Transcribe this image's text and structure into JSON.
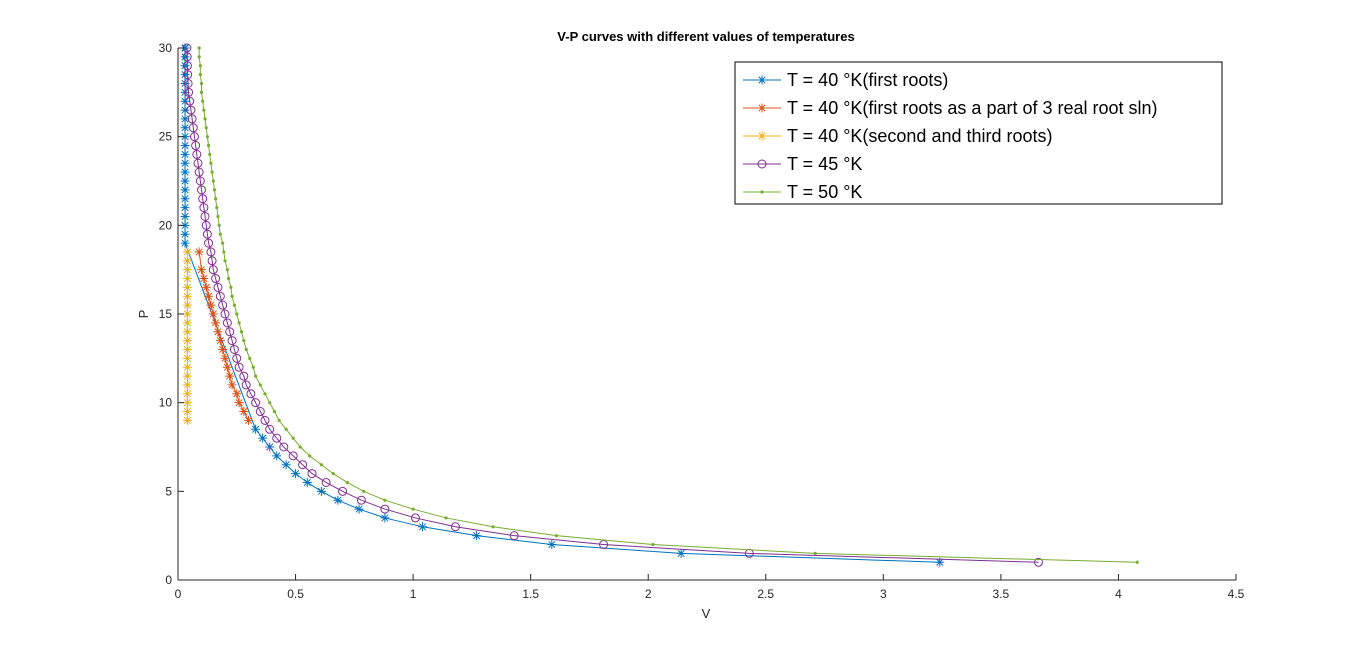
{
  "chart_data": {
    "type": "line",
    "title": "V-P curves with different values of temperatures",
    "xlabel": "V",
    "ylabel": "P",
    "xlim": [
      0,
      4.5
    ],
    "ylim": [
      0,
      30
    ],
    "xticks": [
      0,
      0.5,
      1,
      1.5,
      2,
      2.5,
      3,
      3.5,
      4,
      4.5
    ],
    "xtick_labels": [
      "0",
      "0.5",
      "1",
      "1.5",
      "2",
      "2.5",
      "3",
      "3.5",
      "4",
      "4.5"
    ],
    "yticks": [
      0,
      5,
      10,
      15,
      20,
      25,
      30
    ],
    "ytick_labels": [
      "0",
      "5",
      "10",
      "15",
      "20",
      "25",
      "30"
    ],
    "grid": false,
    "legend_position": "top-right",
    "series": [
      {
        "name": "T = 40 °K(first roots)",
        "color": "#0072BD",
        "marker": "asterisk",
        "x": [
          3.24,
          2.14,
          1.59,
          1.27,
          1.04,
          0.88,
          0.77,
          0.68,
          0.61,
          0.55,
          0.5,
          0.46,
          0.42,
          0.39,
          0.36,
          0.33,
          0.03,
          0.03,
          0.03,
          0.03,
          0.03,
          0.03,
          0.03,
          0.03,
          0.03,
          0.03,
          0.03,
          0.03,
          0.03,
          0.03,
          0.03,
          0.03,
          0.03,
          0.03,
          0.03,
          0.03,
          0.03,
          0.03,
          0.03,
          0.03,
          0.03,
          0.03,
          0.03
        ],
        "y": [
          1,
          1.5,
          2,
          2.5,
          3,
          3.5,
          4,
          4.5,
          5,
          5.5,
          6,
          6.5,
          7,
          7.5,
          8,
          8.5,
          19,
          19.5,
          20,
          20.5,
          21,
          21.5,
          22,
          22.5,
          23,
          23.5,
          24,
          24.5,
          25,
          25.5,
          26,
          26.5,
          27,
          27.5,
          28,
          28.5,
          29,
          29.5,
          30,
          30,
          30,
          30,
          30
        ]
      },
      {
        "name": "T = 40 °K(first roots as a part of 3 real root sln)",
        "color": "#D95319",
        "marker": "asterisk",
        "x": [
          0.3,
          0.28,
          0.26,
          0.25,
          0.23,
          0.22,
          0.21,
          0.2,
          0.19,
          0.18,
          0.17,
          0.16,
          0.15,
          0.14,
          0.13,
          0.12,
          0.11,
          0.1,
          0.09
        ],
        "y": [
          9,
          9.5,
          10,
          10.5,
          11,
          11.5,
          12,
          12.5,
          13,
          13.5,
          14,
          14.5,
          15,
          15.5,
          16,
          16.5,
          17,
          17.5,
          18.5
        ]
      },
      {
        "name": "T = 40 °K(second and third roots)",
        "color": "#EDB120",
        "marker": "asterisk",
        "x": [
          0.04,
          0.04,
          0.04,
          0.04,
          0.04,
          0.04,
          0.04,
          0.04,
          0.04,
          0.04,
          0.04,
          0.04,
          0.04,
          0.04,
          0.04,
          0.04,
          0.04,
          0.04,
          0.04,
          0.04
        ],
        "y": [
          9,
          9.5,
          10,
          10.5,
          11,
          11.5,
          12,
          12.5,
          13,
          13.5,
          14,
          14.5,
          15,
          15.5,
          16,
          16.5,
          17,
          17.5,
          18,
          18.5
        ]
      },
      {
        "name": "T = 45 °K",
        "color": "#7E2F8E",
        "marker": "circle",
        "x": [
          3.66,
          2.43,
          1.81,
          1.43,
          1.18,
          1.01,
          0.88,
          0.78,
          0.7,
          0.63,
          0.57,
          0.53,
          0.49,
          0.45,
          0.42,
          0.39,
          0.37,
          0.35,
          0.33,
          0.31,
          0.29,
          0.28,
          0.26,
          0.25,
          0.24,
          0.23,
          0.22,
          0.21,
          0.2,
          0.19,
          0.18,
          0.17,
          0.16,
          0.15,
          0.145,
          0.14,
          0.13,
          0.125,
          0.12,
          0.115,
          0.11,
          0.105,
          0.1,
          0.095,
          0.09,
          0.085,
          0.08,
          0.075,
          0.07,
          0.065,
          0.06,
          0.055,
          0.05,
          0.045,
          0.043,
          0.041,
          0.04,
          0.039,
          0.038
        ],
        "y": [
          1,
          1.5,
          2,
          2.5,
          3,
          3.5,
          4,
          4.5,
          5,
          5.5,
          6,
          6.5,
          7,
          7.5,
          8,
          8.5,
          9,
          9.5,
          10,
          10.5,
          11,
          11.5,
          12,
          12.5,
          13,
          13.5,
          14,
          14.5,
          15,
          15.5,
          16,
          16.5,
          17,
          17.5,
          18,
          18.5,
          19,
          19.5,
          20,
          20.5,
          21,
          21.5,
          22,
          22.5,
          23,
          23.5,
          24,
          24.5,
          25,
          25.5,
          26,
          26.5,
          27,
          27.5,
          28,
          28.5,
          29,
          29.5,
          30
        ]
      },
      {
        "name": "T = 50 °K",
        "color": "#77AC30",
        "marker": "point",
        "x": [
          4.08,
          2.71,
          2.02,
          1.61,
          1.34,
          1.14,
          1.0,
          0.88,
          0.79,
          0.72,
          0.66,
          0.61,
          0.56,
          0.52,
          0.49,
          0.46,
          0.43,
          0.41,
          0.39,
          0.37,
          0.35,
          0.33,
          0.32,
          0.305,
          0.29,
          0.28,
          0.27,
          0.26,
          0.25,
          0.24,
          0.23,
          0.225,
          0.215,
          0.21,
          0.2,
          0.195,
          0.19,
          0.18,
          0.175,
          0.17,
          0.165,
          0.16,
          0.155,
          0.15,
          0.145,
          0.14,
          0.135,
          0.13,
          0.125,
          0.12,
          0.115,
          0.11,
          0.105,
          0.1,
          0.1,
          0.095,
          0.095,
          0.09,
          0.09
        ],
        "y": [
          1,
          1.5,
          2,
          2.5,
          3,
          3.5,
          4,
          4.5,
          5,
          5.5,
          6,
          6.5,
          7,
          7.5,
          8,
          8.5,
          9,
          9.5,
          10,
          10.5,
          11,
          11.5,
          12,
          12.5,
          13,
          13.5,
          14,
          14.5,
          15,
          15.5,
          16,
          16.5,
          17,
          17.5,
          18,
          18.5,
          19,
          19.5,
          20,
          20.5,
          21,
          21.5,
          22,
          22.5,
          23,
          23.5,
          24,
          24.5,
          25,
          25.5,
          26,
          26.5,
          27,
          27.5,
          28,
          28.5,
          29,
          29.5,
          30
        ]
      }
    ]
  }
}
